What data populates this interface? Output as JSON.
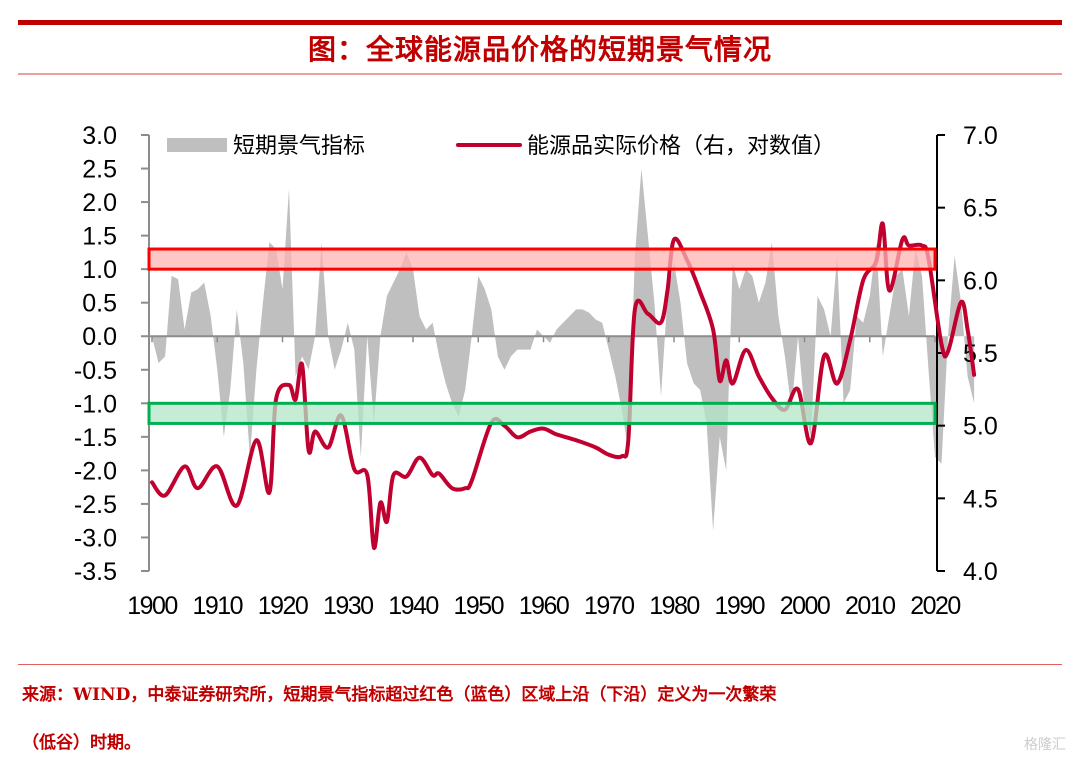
{
  "header": {
    "title": "图：全球能源品价格的短期景气情况"
  },
  "footer": {
    "source_line1": "来源：WIND，中泰证券研究所，短期景气指标超过红色（蓝色）区域上沿（下沿）定义为一次繁荣",
    "source_line2": "（低谷）时期。",
    "watermark": "格隆汇"
  },
  "colors": {
    "brand_red": "#c00000",
    "price_line": "#c0002f",
    "indicator_area": "#bfbfbf",
    "boom_band_fill": "#ffb3b3",
    "boom_band_stroke": "#ff0000",
    "trough_band_fill": "#b3e6c7",
    "trough_band_stroke": "#00b050"
  },
  "chart_data": {
    "type": "area+line",
    "title": "全球能源品价格的短期景气情况",
    "xlabel": "",
    "ylabel_left": "短期景气指标",
    "ylabel_right": "能源品实际价格（右，对数值）",
    "x_ticks": [
      "1900",
      "1910",
      "1920",
      "1930",
      "1940",
      "1950",
      "1960",
      "1970",
      "1980",
      "1990",
      "2000",
      "2010",
      "2020"
    ],
    "y_left_ticks": [
      "3.0",
      "2.5",
      "2.0",
      "1.5",
      "1.0",
      "0.5",
      "0.0",
      "-0.5",
      "-1.0",
      "-1.5",
      "-2.0",
      "-2.5",
      "-3.0",
      "-3.5"
    ],
    "y_right_ticks": [
      "7.0",
      "6.5",
      "6.0",
      "5.5",
      "5.0",
      "4.5",
      "4.0"
    ],
    "ylim_left": [
      -3.5,
      3.0
    ],
    "ylim_right": [
      4.0,
      7.0
    ],
    "xlim": [
      1900,
      2020
    ],
    "legend": [
      {
        "label": "短期景气指标",
        "type": "area"
      },
      {
        "label": "能源品实际价格（右，对数值）",
        "type": "line"
      }
    ],
    "legend_position": "top",
    "grid": false,
    "bands": [
      {
        "name": "boom",
        "axis": "left",
        "from": 1.0,
        "to": 1.3,
        "color": "red"
      },
      {
        "name": "trough",
        "axis": "left",
        "from": -1.3,
        "to": -1.0,
        "color": "green"
      }
    ],
    "series": [
      {
        "name": "短期景气指标",
        "axis": "left",
        "type": "area",
        "x": [
          1900,
          1901,
          1902,
          1903,
          1904,
          1905,
          1906,
          1907,
          1908,
          1909,
          1910,
          1911,
          1912,
          1913,
          1914,
          1915,
          1916,
          1917,
          1918,
          1919,
          1920,
          1921,
          1922,
          1923,
          1924,
          1925,
          1926,
          1927,
          1928,
          1929,
          1930,
          1931,
          1932,
          1933,
          1934,
          1935,
          1936,
          1937,
          1938,
          1939,
          1940,
          1941,
          1942,
          1943,
          1944,
          1945,
          1946,
          1947,
          1948,
          1949,
          1950,
          1951,
          1952,
          1953,
          1954,
          1955,
          1956,
          1957,
          1958,
          1959,
          1960,
          1961,
          1962,
          1963,
          1964,
          1965,
          1966,
          1967,
          1968,
          1969,
          1970,
          1971,
          1972,
          1973,
          1974,
          1975,
          1976,
          1977,
          1978,
          1979,
          1980,
          1981,
          1982,
          1983,
          1984,
          1985,
          1986,
          1987,
          1988,
          1989,
          1990,
          1991,
          1992,
          1993,
          1994,
          1995,
          1996,
          1997,
          1998,
          1999,
          2000,
          2001,
          2002,
          2003,
          2004,
          2005,
          2006,
          2007,
          2008,
          2009,
          2010,
          2011,
          2012,
          2013,
          2014,
          2015,
          2016,
          2017,
          2018,
          2019,
          2020,
          2021,
          2022,
          2023,
          2024,
          2025,
          2026
        ],
        "values": [
          0.0,
          -0.4,
          -0.3,
          0.9,
          0.85,
          0.1,
          0.65,
          0.7,
          0.8,
          0.3,
          -0.5,
          -1.5,
          -0.8,
          0.4,
          -0.4,
          -1.8,
          -0.5,
          0.5,
          1.4,
          1.3,
          0.7,
          2.2,
          -0.6,
          -0.3,
          -0.5,
          0.0,
          1.4,
          0.0,
          -0.5,
          -0.2,
          0.2,
          -0.2,
          -1.8,
          0.0,
          -1.3,
          0.0,
          0.6,
          0.8,
          1.0,
          1.25,
          1.0,
          0.3,
          0.1,
          0.2,
          -0.3,
          -0.7,
          -1.0,
          -1.2,
          -0.8,
          0.0,
          0.9,
          0.7,
          0.4,
          -0.3,
          -0.5,
          -0.3,
          -0.2,
          -0.2,
          -0.2,
          0.1,
          0.0,
          -0.1,
          0.1,
          0.2,
          0.3,
          0.4,
          0.4,
          0.35,
          0.25,
          0.2,
          -0.2,
          -0.6,
          -1.1,
          -1.7,
          1.2,
          2.5,
          1.5,
          0.5,
          -0.9,
          0.6,
          1.1,
          0.5,
          -0.4,
          -0.7,
          -0.8,
          -1.3,
          -2.9,
          -1.5,
          -2.0,
          1.1,
          0.7,
          1.0,
          0.9,
          0.5,
          0.8,
          1.4,
          0.3,
          -0.3,
          -1.1,
          0.0,
          -1.1,
          -1.5,
          0.6,
          0.4,
          0.0,
          1.2,
          -1.0,
          -0.8,
          0.3,
          0.2,
          0.6,
          1.4,
          -0.3,
          0.3,
          0.9,
          1.0,
          0.3,
          1.3,
          0.9,
          -0.5,
          -1.8,
          -1.9,
          0.0,
          1.2,
          0.5,
          -0.6,
          -1.0
        ]
      },
      {
        "name": "能源品实际价格（右，对数值）",
        "axis": "right",
        "type": "line",
        "x": [
          1900,
          1902,
          1905,
          1907,
          1910,
          1913,
          1916,
          1918,
          1919,
          1921,
          1922,
          1923,
          1924,
          1925,
          1927,
          1929,
          1931,
          1933,
          1934,
          1935,
          1936,
          1937,
          1939,
          1941,
          1943,
          1944,
          1946,
          1948,
          1949,
          1952,
          1954,
          1956,
          1958,
          1960,
          1962,
          1965,
          1968,
          1970,
          1972,
          1973,
          1974,
          1976,
          1978,
          1979,
          1980,
          1982,
          1984,
          1986,
          1987,
          1988,
          1989,
          1991,
          1993,
          1995,
          1997,
          1999,
          2001,
          2003,
          2005,
          2007,
          2009,
          2011,
          2012,
          2013,
          2015,
          2016,
          2018,
          2019,
          2021,
          2022,
          2024,
          2025,
          2026
        ],
        "values": [
          4.61,
          4.52,
          4.72,
          4.57,
          4.72,
          4.45,
          4.9,
          4.54,
          5.18,
          5.28,
          5.18,
          5.42,
          4.83,
          4.96,
          4.85,
          5.07,
          4.7,
          4.66,
          4.16,
          4.47,
          4.34,
          4.66,
          4.65,
          4.78,
          4.66,
          4.67,
          4.57,
          4.57,
          4.62,
          5.02,
          5.0,
          4.92,
          4.96,
          4.98,
          4.94,
          4.9,
          4.85,
          4.8,
          4.79,
          4.9,
          5.8,
          5.77,
          5.71,
          5.93,
          6.28,
          6.14,
          5.92,
          5.66,
          5.31,
          5.45,
          5.29,
          5.52,
          5.34,
          5.19,
          5.11,
          5.25,
          4.88,
          5.48,
          5.29,
          5.59,
          6.0,
          6.13,
          6.39,
          5.93,
          6.28,
          6.24,
          6.24,
          6.15,
          5.56,
          5.51,
          5.85,
          5.66,
          5.35
        ]
      }
    ]
  }
}
